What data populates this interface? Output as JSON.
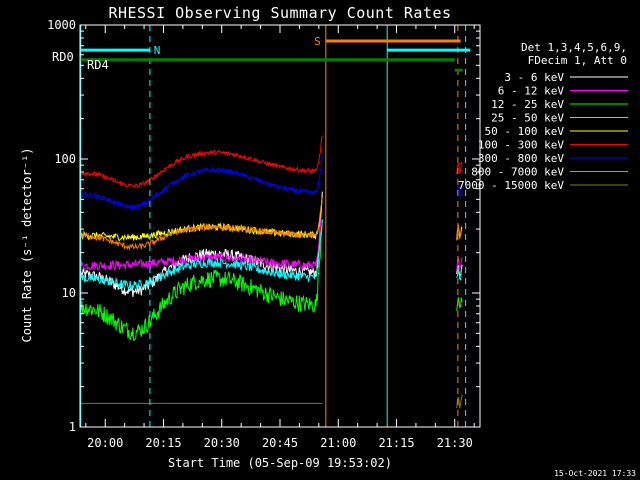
{
  "chart_data": {
    "type": "line",
    "title": "RHESSI Observing Summary Count Rates",
    "xlabel": "Start Time (05-Sep-09 19:53:02)",
    "ylabel": "Count Rate (s⁻¹ detector⁻¹)",
    "yscale": "log",
    "ylim": [
      1,
      1000
    ],
    "xlim_minutes": [
      -6.5,
      96.5
    ],
    "y_ticks": [
      {
        "value": 1,
        "label": "1"
      },
      {
        "value": 10,
        "label": "10"
      },
      {
        "value": 100,
        "label": "100"
      },
      {
        "value": 1000,
        "label": "1000"
      }
    ],
    "x_ticks": [
      {
        "minute": 0,
        "label": "20:00"
      },
      {
        "minute": 15,
        "label": "20:15"
      },
      {
        "minute": 30,
        "label": "20:30"
      },
      {
        "minute": 45,
        "label": "20:45"
      },
      {
        "minute": 60,
        "label": "21:00"
      },
      {
        "minute": 75,
        "label": "21:15"
      },
      {
        "minute": 90,
        "label": "21:30"
      }
    ],
    "legend_header": [
      "Det 1,3,4,5,6,9,",
      "FDecim 1, Att 0"
    ],
    "legend_placement": "right",
    "series": [
      {
        "name": "3 - 6 keV",
        "color": "#ffffff",
        "base": 14,
        "bump": 1.4,
        "low_dip": 0.7,
        "noise": 0.1,
        "spike": 4
      },
      {
        "name": "6 - 12 keV",
        "color": "#ff00ff",
        "base": 16,
        "bump": 1.15,
        "low_dip": 1.0,
        "noise": 0.08,
        "spike": 3
      },
      {
        "name": "12 - 25 keV",
        "color": "#00ff00",
        "base": 8,
        "bump": 1.6,
        "low_dip": 0.6,
        "noise": 0.15,
        "spike": 5
      },
      {
        "name": "25 - 50 keV",
        "color": "#00ffff",
        "base": 13,
        "bump": 1.3,
        "low_dip": 0.85,
        "noise": 0.08,
        "spike": 3
      },
      {
        "name": "50 - 100 keV",
        "color": "#ffff00",
        "base": 27,
        "bump": 1.15,
        "low_dip": 0.95,
        "noise": 0.06,
        "spike": 2
      },
      {
        "name": "100 - 300 keV",
        "color": "#ff0000",
        "base": 80,
        "bump": 1.4,
        "low_dip": 0.75,
        "noise": 0.04,
        "spike": 2
      },
      {
        "name": "300 - 800 keV",
        "color": "#0000ff",
        "base": 55,
        "bump": 1.5,
        "low_dip": 0.75,
        "noise": 0.04,
        "spike": 2
      },
      {
        "name": "800 - 7000 keV",
        "color": "#ff8000",
        "base": 27,
        "bump": 1.15,
        "low_dip": 0.8,
        "noise": 0.05,
        "spike": 2
      },
      {
        "name": "7000 - 15000 keV",
        "color": "#808000",
        "base": 1.5,
        "bump": 1.0,
        "low_dip": 1.0,
        "noise": 0.0,
        "spike": 1
      }
    ],
    "gaps_minutes": [
      [
        56,
        90.5
      ]
    ],
    "vertical_markers": [
      {
        "minute": -6.3,
        "color": "#00ffff",
        "style": "solid"
      },
      {
        "minute": 11.5,
        "color": "#00ffff",
        "style": "dashed"
      },
      {
        "minute": 56.8,
        "color": "#ff8000",
        "style": "solid"
      },
      {
        "minute": 72.6,
        "color": "#00ffff",
        "style": "solid"
      },
      {
        "minute": 90.8,
        "color": "#ff8000",
        "style": "dashed"
      },
      {
        "minute": 92.8,
        "color": "#00ffff",
        "style": "dashed"
      }
    ],
    "status_bars": [
      {
        "color": "#00ffff",
        "value": 650,
        "from": -6.3,
        "to": 11.5,
        "label": "N",
        "label_at": 12.5,
        "label_pos": "right"
      },
      {
        "color": "#00ffff",
        "value": 650,
        "from": 72.6,
        "to": 94,
        "label": "",
        "label_at": 0,
        "label_pos": "right"
      },
      {
        "color": "#ff8000",
        "value": 760,
        "from": 56.8,
        "to": 91.5,
        "label": "S",
        "label_at": 55.5,
        "label_pos": "left"
      },
      {
        "color": "#008000",
        "value": 550,
        "from": -6.3,
        "to": 90,
        "label": "",
        "label_at": 0,
        "label_pos": "right"
      },
      {
        "color": "#008000",
        "value": 460,
        "from": 90,
        "to": 92,
        "label": "",
        "label_at": 0,
        "label_pos": "right"
      }
    ],
    "side_labels": [
      {
        "text": "RD0",
        "color": "#008000"
      },
      {
        "text": "RD4",
        "color": "#008000"
      }
    ],
    "timestamp": "15-Oct-2021 17:33"
  }
}
